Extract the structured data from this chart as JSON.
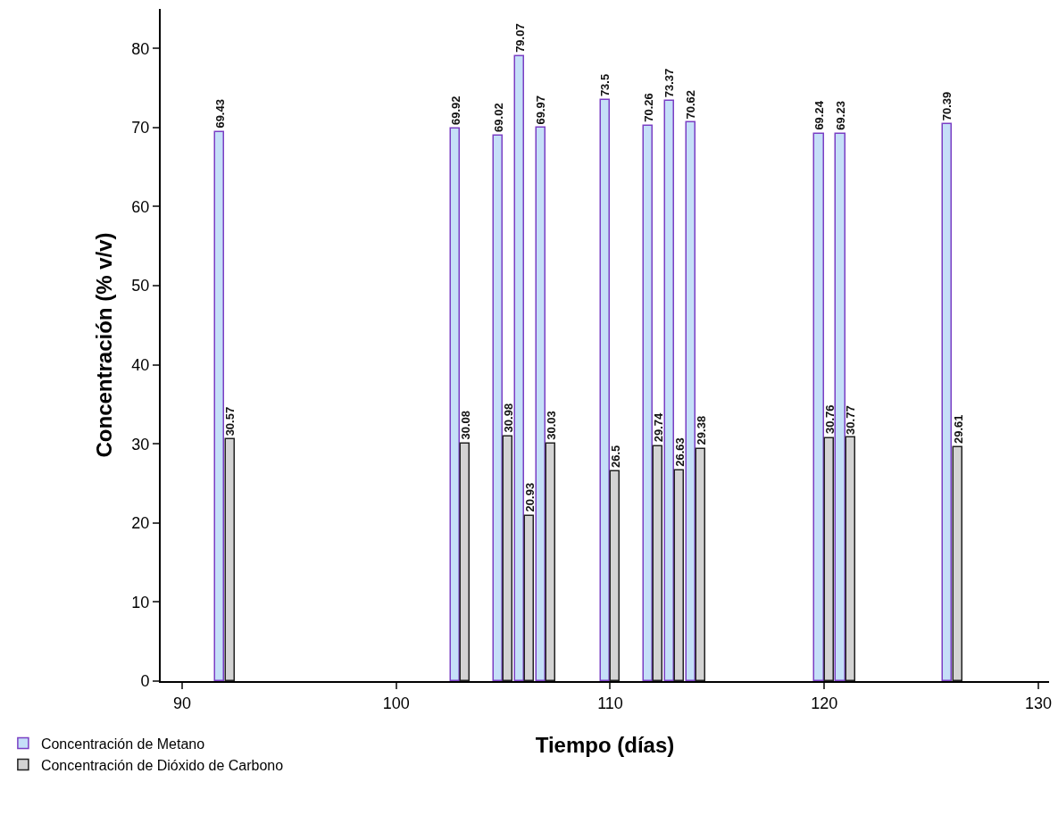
{
  "chart_data": {
    "type": "bar",
    "xlabel": "Tiempo (días)",
    "ylabel": "Concentración (% v/v)",
    "x": [
      92,
      103,
      105,
      106,
      107,
      110,
      112,
      113,
      114,
      120,
      121,
      126
    ],
    "series": [
      {
        "name": "Concentración de Metano",
        "color": "#c5dff8",
        "values": [
          69.43,
          69.92,
          69.02,
          79.07,
          69.97,
          73.5,
          70.26,
          73.37,
          70.62,
          69.24,
          69.23,
          70.39
        ]
      },
      {
        "name": "Concentración de Dióxido de Carbono",
        "color": "#d3d3d3",
        "values": [
          30.57,
          30.08,
          30.98,
          20.93,
          30.03,
          26.5,
          29.74,
          26.63,
          29.38,
          30.76,
          30.77,
          29.61
        ]
      }
    ],
    "data_labels": true,
    "xlim": [
      89,
      130.5
    ],
    "xticks": [
      90,
      100,
      110,
      120,
      130
    ],
    "ylim": [
      0,
      85
    ],
    "yticks": [
      0,
      10,
      20,
      30,
      40,
      50,
      60,
      70,
      80
    ],
    "legend": "bottom left"
  }
}
